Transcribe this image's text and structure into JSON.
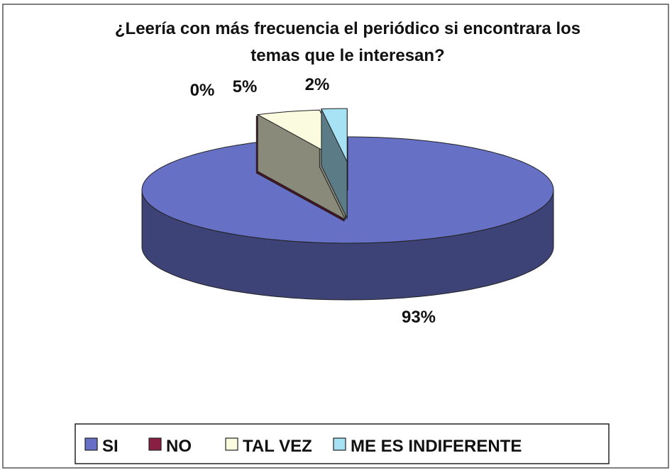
{
  "chart_data": {
    "type": "pie",
    "title": "¿Leería con más frecuencia el periódico si encontrara los temas que le interesan?",
    "categories": [
      "SI",
      "NO",
      "TAL VEZ",
      "ME ES INDIFERENTE"
    ],
    "values": [
      93,
      0,
      5,
      2
    ],
    "value_labels": [
      "93%",
      "0%",
      "5%",
      "2%"
    ],
    "colors": [
      "#6670c4",
      "#8a1f44",
      "#fbfbdf",
      "#a6e2f4"
    ],
    "legend": "bottom"
  }
}
